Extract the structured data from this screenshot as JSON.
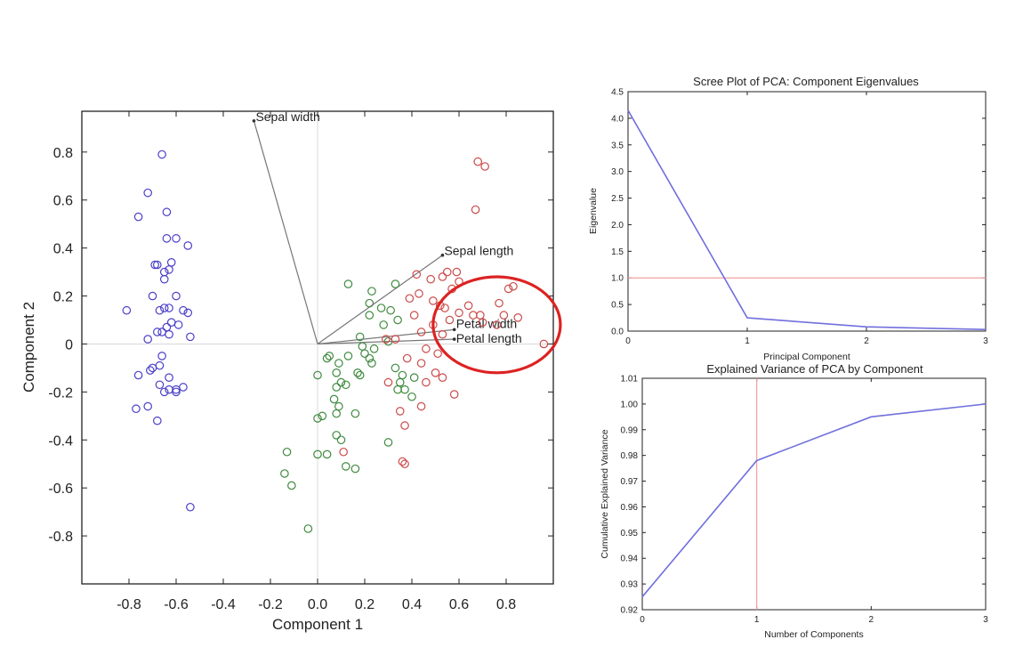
{
  "colors": {
    "setosa": "#4a3fc8",
    "versicolor": "#3f8a3f",
    "virginica": "#cc4a4a",
    "vector": "#777777",
    "line": "#7070dd",
    "refline": "#f0a0a0",
    "highlight": "#dd2222"
  },
  "chart_data": [
    {
      "type": "scatter",
      "title": "",
      "xlabel": "Component 1",
      "ylabel": "Component 2",
      "xlim": [
        -1.0,
        1.0
      ],
      "ylim": [
        -1.0,
        0.97
      ],
      "xticks": [
        -0.8,
        -0.6,
        -0.4,
        -0.2,
        0,
        0.2,
        0.4,
        0.6,
        0.8
      ],
      "yticks": [
        -0.8,
        -0.6,
        -0.4,
        -0.2,
        0,
        0.2,
        0.4,
        0.6,
        0.8
      ],
      "xtick_labels": [
        "-0.8",
        "-0.6",
        "-0.4",
        "-0.2",
        "0.0",
        "0.2",
        "0.4",
        "0.6",
        "0.8"
      ],
      "ytick_labels": [
        "-0.8",
        "-0.6",
        "-0.4",
        "-0.2",
        "0",
        "0.2",
        "0.4",
        "0.6",
        "0.8"
      ],
      "grid": false,
      "zero_lines": true,
      "series": [
        {
          "group": "setosa",
          "points": [
            [
              -0.66,
              0.79
            ],
            [
              -0.72,
              0.63
            ],
            [
              -0.76,
              0.53
            ],
            [
              -0.64,
              0.55
            ],
            [
              -0.64,
              0.44
            ],
            [
              -0.6,
              0.44
            ],
            [
              -0.55,
              0.41
            ],
            [
              -0.69,
              0.33
            ],
            [
              -0.68,
              0.33
            ],
            [
              -0.62,
              0.34
            ],
            [
              -0.65,
              0.3
            ],
            [
              -0.63,
              0.31
            ],
            [
              -0.65,
              0.27
            ],
            [
              -0.7,
              0.2
            ],
            [
              -0.6,
              0.2
            ],
            [
              -0.81,
              0.14
            ],
            [
              -0.67,
              0.14
            ],
            [
              -0.65,
              0.15
            ],
            [
              -0.63,
              0.15
            ],
            [
              -0.57,
              0.14
            ],
            [
              -0.55,
              0.13
            ],
            [
              -0.62,
              0.09
            ],
            [
              -0.64,
              0.07
            ],
            [
              -0.59,
              0.08
            ],
            [
              -0.66,
              0.05
            ],
            [
              -0.68,
              0.05
            ],
            [
              -0.63,
              0.04
            ],
            [
              -0.72,
              0.02
            ],
            [
              -0.54,
              0.03
            ],
            [
              -0.66,
              -0.05
            ],
            [
              -0.7,
              -0.1
            ],
            [
              -0.67,
              -0.09
            ],
            [
              -0.71,
              -0.11
            ],
            [
              -0.76,
              -0.13
            ],
            [
              -0.63,
              -0.14
            ],
            [
              -0.67,
              -0.17
            ],
            [
              -0.63,
              -0.19
            ],
            [
              -0.6,
              -0.19
            ],
            [
              -0.6,
              -0.2
            ],
            [
              -0.65,
              -0.2
            ],
            [
              -0.57,
              -0.18
            ],
            [
              -0.72,
              -0.26
            ],
            [
              -0.77,
              -0.27
            ],
            [
              -0.68,
              -0.32
            ],
            [
              -0.54,
              -0.68
            ]
          ]
        },
        {
          "group": "versicolor",
          "points": [
            [
              0.13,
              0.25
            ],
            [
              0.23,
              0.22
            ],
            [
              0.33,
              0.25
            ],
            [
              0.22,
              0.17
            ],
            [
              0.27,
              0.15
            ],
            [
              0.31,
              0.14
            ],
            [
              0.22,
              0.12
            ],
            [
              0.28,
              0.08
            ],
            [
              0.34,
              0.1
            ],
            [
              0.18,
              0.03
            ],
            [
              0.3,
              0.01
            ],
            [
              0.19,
              -0.01
            ],
            [
              0.2,
              -0.04
            ],
            [
              0.24,
              -0.02
            ],
            [
              0.22,
              -0.06
            ],
            [
              0.05,
              -0.05
            ],
            [
              0.04,
              -0.06
            ],
            [
              0.09,
              -0.08
            ],
            [
              0.13,
              -0.05
            ],
            [
              0.23,
              -0.08
            ],
            [
              0.18,
              -0.13
            ],
            [
              0.36,
              -0.13
            ],
            [
              0.33,
              -0.1
            ],
            [
              0.35,
              -0.16
            ],
            [
              0.0,
              -0.13
            ],
            [
              0.08,
              -0.12
            ],
            [
              0.1,
              -0.16
            ],
            [
              0.08,
              -0.18
            ],
            [
              0.12,
              -0.17
            ],
            [
              0.07,
              -0.23
            ],
            [
              0.09,
              -0.26
            ],
            [
              0.17,
              -0.12
            ],
            [
              0.02,
              -0.3
            ],
            [
              0.0,
              -0.31
            ],
            [
              0.08,
              -0.29
            ],
            [
              0.16,
              -0.29
            ],
            [
              0.08,
              -0.38
            ],
            [
              0.1,
              -0.4
            ],
            [
              0.3,
              -0.41
            ],
            [
              0.0,
              -0.46
            ],
            [
              0.04,
              -0.46
            ],
            [
              0.12,
              -0.51
            ],
            [
              0.16,
              -0.52
            ],
            [
              -0.13,
              -0.45
            ],
            [
              -0.14,
              -0.54
            ],
            [
              -0.11,
              -0.59
            ],
            [
              -0.04,
              -0.77
            ],
            [
              0.34,
              -0.19
            ],
            [
              0.41,
              -0.14
            ],
            [
              0.4,
              -0.22
            ],
            [
              0.37,
              -0.19
            ]
          ]
        },
        {
          "group": "virginica",
          "points": [
            [
              0.68,
              0.76
            ],
            [
              0.71,
              0.74
            ],
            [
              0.67,
              0.56
            ],
            [
              0.42,
              0.29
            ],
            [
              0.55,
              0.3
            ],
            [
              0.59,
              0.3
            ],
            [
              0.53,
              0.28
            ],
            [
              0.6,
              0.26
            ],
            [
              0.48,
              0.27
            ],
            [
              0.49,
              0.18
            ],
            [
              0.43,
              0.21
            ],
            [
              0.39,
              0.19
            ],
            [
              0.81,
              0.23
            ],
            [
              0.83,
              0.24
            ],
            [
              0.77,
              0.17
            ],
            [
              0.85,
              0.11
            ],
            [
              0.79,
              0.12
            ],
            [
              0.57,
              0.23
            ],
            [
              0.54,
              0.15
            ],
            [
              0.52,
              0.16
            ],
            [
              0.64,
              0.16
            ],
            [
              0.66,
              0.12
            ],
            [
              0.69,
              0.12
            ],
            [
              0.6,
              0.13
            ],
            [
              0.7,
              0.09
            ],
            [
              0.76,
              0.08
            ],
            [
              0.41,
              0.12
            ],
            [
              0.49,
              0.08
            ],
            [
              0.56,
              0.1
            ],
            [
              0.53,
              0.04
            ],
            [
              0.44,
              0.05
            ],
            [
              0.29,
              0.02
            ],
            [
              0.33,
              0.02
            ],
            [
              0.46,
              -0.02
            ],
            [
              0.51,
              -0.04
            ],
            [
              0.38,
              -0.06
            ],
            [
              0.44,
              -0.08
            ],
            [
              0.5,
              -0.12
            ],
            [
              0.46,
              -0.16
            ],
            [
              0.53,
              -0.14
            ],
            [
              0.58,
              -0.21
            ],
            [
              0.44,
              -0.26
            ],
            [
              0.3,
              -0.16
            ],
            [
              0.35,
              -0.28
            ],
            [
              0.37,
              -0.34
            ],
            [
              0.96,
              0.0
            ],
            [
              0.11,
              -0.45
            ],
            [
              0.36,
              -0.49
            ],
            [
              0.37,
              -0.5
            ]
          ]
        }
      ],
      "vectors": [
        {
          "name": "Sepal width",
          "x": -0.27,
          "y": 0.93
        },
        {
          "name": "Sepal length",
          "x": 0.53,
          "y": 0.37
        },
        {
          "name": "Petal width",
          "x": 0.58,
          "y": 0.06
        },
        {
          "name": "Petal length",
          "x": 0.58,
          "y": 0.02
        }
      ],
      "highlight": {
        "cx": 0.76,
        "cy": 0.08,
        "rx": 0.27,
        "ry": 0.2
      }
    },
    {
      "type": "line",
      "title": "Scree Plot of PCA: Component Eigenvalues",
      "xlabel": "Principal Component",
      "ylabel": "Eigenvalue",
      "x": [
        0,
        1,
        2,
        3
      ],
      "series": [
        {
          "values": [
            4.15,
            0.25,
            0.08,
            0.03
          ]
        }
      ],
      "xlim": [
        0,
        3
      ],
      "ylim": [
        0,
        4.5
      ],
      "xticks": [
        0,
        1,
        2,
        3
      ],
      "xtick_labels": [
        "0",
        "1",
        "2",
        "3"
      ],
      "yticks": [
        0,
        0.5,
        1,
        1.5,
        2,
        2.5,
        3,
        3.5,
        4,
        4.5
      ],
      "ytick_labels": [
        "0.0",
        "0.5",
        "1.0",
        "1.5",
        "2.0",
        "2.5",
        "3.0",
        "3.5",
        "4.0",
        "4.5"
      ],
      "hline": 1.0,
      "grid": false
    },
    {
      "type": "line",
      "title": "Explained Variance of PCA by Component",
      "xlabel": "Number of Components",
      "ylabel": "Cumulative Explained Variance",
      "x": [
        0,
        1,
        2,
        3
      ],
      "series": [
        {
          "values": [
            0.925,
            0.978,
            0.995,
            1.0
          ]
        }
      ],
      "xlim": [
        0,
        3
      ],
      "ylim": [
        0.92,
        1.01
      ],
      "xticks": [
        0,
        1,
        2,
        3
      ],
      "xtick_labels": [
        "0",
        "1",
        "2",
        "3"
      ],
      "yticks": [
        0.92,
        0.93,
        0.94,
        0.95,
        0.96,
        0.97,
        0.98,
        0.99,
        1.0,
        1.01
      ],
      "ytick_labels": [
        "0.92",
        "0.93",
        "0.94",
        "0.95",
        "0.96",
        "0.97",
        "0.98",
        "0.99",
        "1.00",
        "1.01"
      ],
      "vline": 1,
      "grid": false
    }
  ]
}
